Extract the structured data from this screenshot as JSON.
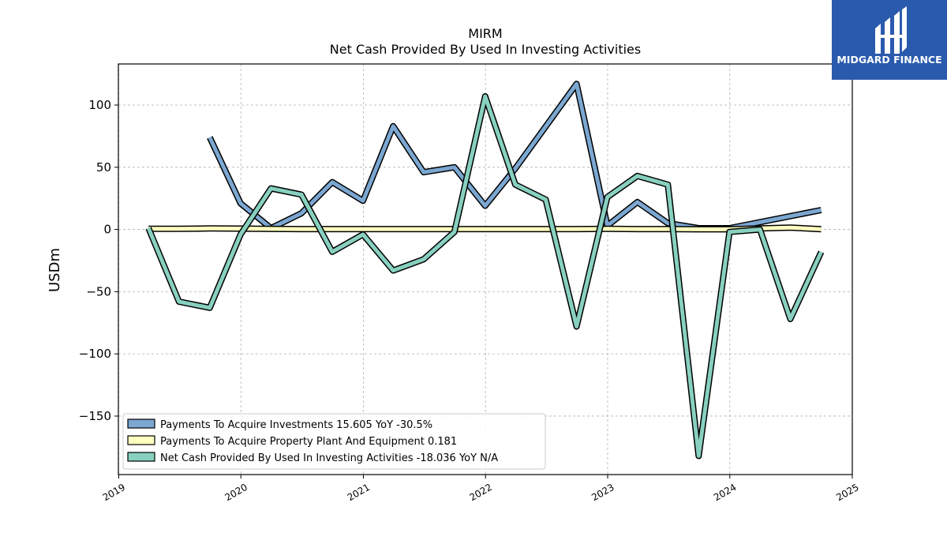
{
  "logo": {
    "name": "MIDGARD FINANCE",
    "bg_color": "#2a5aad"
  },
  "chart_data": {
    "type": "line",
    "title": "MIRM",
    "subtitle": "Net Cash Provided By Used In Investing Activities",
    "ylabel": "USDm",
    "xlabel": "",
    "xlim": [
      "2018-12-31",
      "2025-01-01"
    ],
    "ylim": [
      -197,
      133
    ],
    "x_ticks": [
      "2019",
      "2020",
      "2021",
      "2022",
      "2023",
      "2024",
      "2025"
    ],
    "y_ticks": [
      100,
      50,
      0,
      -50,
      -100,
      -150
    ],
    "grid": true,
    "legend_position": "lower-left",
    "series": [
      {
        "name": "Payments To Acquire Investments",
        "legend": "Payments To Acquire Investments  15.605 YoY -30.5%",
        "color": "#7ba7d1",
        "points": [
          [
            "2019-09-30",
            74
          ],
          [
            "2019-12-31",
            21
          ],
          [
            "2020-03-31",
            1
          ],
          [
            "2020-06-30",
            13
          ],
          [
            "2020-09-30",
            38
          ],
          [
            "2020-12-31",
            23
          ],
          [
            "2021-03-31",
            83
          ],
          [
            "2021-06-30",
            46
          ],
          [
            "2021-09-30",
            50
          ],
          [
            "2021-12-31",
            19
          ],
          [
            "2022-03-31",
            49
          ],
          [
            "2022-09-30",
            117
          ],
          [
            "2022-12-31",
            3
          ],
          [
            "2023-03-31",
            22
          ],
          [
            "2023-06-30",
            5
          ],
          [
            "2023-09-30",
            1
          ],
          [
            "2023-12-31",
            1
          ],
          [
            "2024-09-30",
            15.605
          ]
        ]
      },
      {
        "name": "Payments To Acquire Property Plant And Equipment",
        "legend": "Payments To Acquire Property Plant And Equipment  0.181",
        "color": "#ffffc0",
        "points": [
          [
            "2019-03-31",
            0.5
          ],
          [
            "2019-06-30",
            0.5
          ],
          [
            "2019-09-30",
            0.8
          ],
          [
            "2019-12-31",
            0.7
          ],
          [
            "2020-03-31",
            0.4
          ],
          [
            "2020-06-30",
            0.3
          ],
          [
            "2020-09-30",
            0.3
          ],
          [
            "2020-12-31",
            0.3
          ],
          [
            "2021-03-31",
            0.3
          ],
          [
            "2021-06-30",
            0.3
          ],
          [
            "2021-09-30",
            0.3
          ],
          [
            "2021-12-31",
            0.3
          ],
          [
            "2022-03-31",
            0.3
          ],
          [
            "2022-06-30",
            0.3
          ],
          [
            "2022-09-30",
            0.3
          ],
          [
            "2022-12-31",
            0.5
          ],
          [
            "2023-03-31",
            0.3
          ],
          [
            "2023-06-30",
            0.3
          ],
          [
            "2023-09-30",
            0.1
          ],
          [
            "2023-12-31",
            0.1
          ],
          [
            "2024-03-31",
            0.8
          ],
          [
            "2024-06-30",
            1.5
          ],
          [
            "2024-09-30",
            0.181
          ]
        ]
      },
      {
        "name": "Net Cash Provided By Used In Investing Activities",
        "legend": "Net Cash Provided By Used In Investing Activities  -18.036 YoY N/A",
        "color": "#88d0c0",
        "points": [
          [
            "2019-03-31",
            1
          ],
          [
            "2019-06-30",
            -58
          ],
          [
            "2019-09-30",
            -63
          ],
          [
            "2019-12-31",
            -4
          ],
          [
            "2020-03-31",
            33
          ],
          [
            "2020-06-30",
            28
          ],
          [
            "2020-09-30",
            -18
          ],
          [
            "2020-12-31",
            -4
          ],
          [
            "2021-03-31",
            -33
          ],
          [
            "2021-06-30",
            -24
          ],
          [
            "2021-09-30",
            -2
          ],
          [
            "2021-12-31",
            107
          ],
          [
            "2022-03-31",
            36
          ],
          [
            "2022-06-30",
            24
          ],
          [
            "2022-09-30",
            -78
          ],
          [
            "2022-12-31",
            26
          ],
          [
            "2023-03-31",
            43
          ],
          [
            "2023-06-30",
            36
          ],
          [
            "2023-09-30",
            -182
          ],
          [
            "2023-12-31",
            -2
          ],
          [
            "2024-03-31",
            0
          ],
          [
            "2024-06-30",
            -72
          ],
          [
            "2024-09-30",
            -18.036
          ]
        ]
      }
    ]
  }
}
